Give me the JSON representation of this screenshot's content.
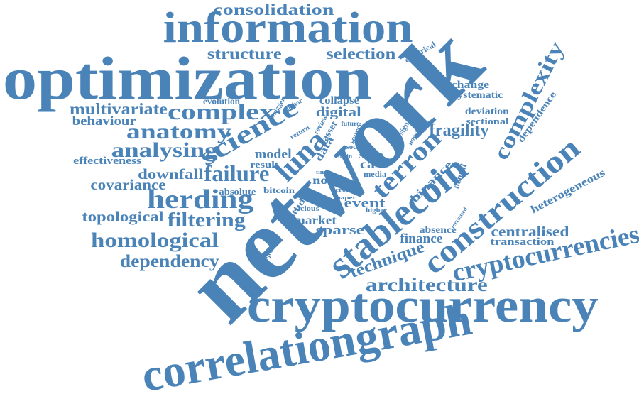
{
  "cloud": {
    "color": "#4a83b8",
    "words": [
      {
        "id": "consolidation",
        "text": "consolidation"
      },
      {
        "id": "information",
        "text": "information"
      },
      {
        "id": "optimization",
        "text": "optimization"
      },
      {
        "id": "structure",
        "text": "structure"
      },
      {
        "id": "selection",
        "text": "selection"
      },
      {
        "id": "empirical",
        "text": "empirical"
      },
      {
        "id": "network",
        "text": "network"
      },
      {
        "id": "evolution",
        "text": "evolution"
      },
      {
        "id": "collapse",
        "text": "collapse"
      },
      {
        "id": "exchange",
        "text": "exchange"
      },
      {
        "id": "systematic",
        "text": "systematic"
      },
      {
        "id": "complexity",
        "text": "complexity"
      },
      {
        "id": "multivariate",
        "text": "multivariate"
      },
      {
        "id": "complex",
        "text": "complex"
      },
      {
        "id": "trigger",
        "text": "trigger"
      },
      {
        "id": "anchor",
        "text": "anchor"
      },
      {
        "id": "digital",
        "text": "digital"
      },
      {
        "id": "dependence",
        "text": "dependence"
      },
      {
        "id": "deviation",
        "text": "deviation"
      },
      {
        "id": "sectional",
        "text": "sectional"
      },
      {
        "id": "behaviour",
        "text": "behaviour"
      },
      {
        "id": "science",
        "text": "science"
      },
      {
        "id": "anatomy",
        "text": "anatomy"
      },
      {
        "id": "fragility",
        "text": "fragility"
      },
      {
        "id": "construction",
        "text": "construction"
      },
      {
        "id": "return",
        "text": "return"
      },
      {
        "id": "review",
        "text": "review"
      },
      {
        "id": "asset",
        "text": "asset"
      },
      {
        "id": "future",
        "text": "future"
      },
      {
        "id": "design",
        "text": "design"
      },
      {
        "id": "novel",
        "text": "novel"
      },
      {
        "id": "analysing",
        "text": "analysing"
      },
      {
        "id": "luna",
        "text": "luna"
      },
      {
        "id": "data",
        "text": "data"
      },
      {
        "id": "source",
        "text": "source"
      },
      {
        "id": "social",
        "text": "social"
      },
      {
        "id": "terron",
        "text": "terron"
      },
      {
        "id": "effectiveness",
        "text": "effectiveness"
      },
      {
        "id": "model",
        "text": "model"
      },
      {
        "id": "main",
        "text": "main"
      },
      {
        "id": "state",
        "text": "state"
      },
      {
        "id": "case",
        "text": "case"
      },
      {
        "id": "stablecoin",
        "text": "stablecoin"
      },
      {
        "id": "result",
        "text": "result"
      },
      {
        "id": "media",
        "text": "media"
      },
      {
        "id": "binance",
        "text": "binance"
      },
      {
        "id": "neural",
        "text": "neural"
      },
      {
        "id": "heterogeneous",
        "text": "heterogeneous"
      },
      {
        "id": "covariance",
        "text": "covariance"
      },
      {
        "id": "downfall",
        "text": "downfall"
      },
      {
        "id": "failure",
        "text": "failure"
      },
      {
        "id": "time",
        "text": "time"
      },
      {
        "id": "noise",
        "text": "noise"
      },
      {
        "id": "herding",
        "text": "herding"
      },
      {
        "id": "absolute",
        "text": "absolute"
      },
      {
        "id": "bitcoin",
        "text": "bitcoin"
      },
      {
        "id": "cross",
        "text": "cross"
      },
      {
        "id": "paper",
        "text": "paper"
      },
      {
        "id": "event",
        "text": "event"
      },
      {
        "id": "higher",
        "text": "higher"
      },
      {
        "id": "topological",
        "text": "topological"
      },
      {
        "id": "filtering",
        "text": "filtering"
      },
      {
        "id": "study",
        "text": "study"
      },
      {
        "id": "vicious",
        "text": "vicious"
      },
      {
        "id": "market",
        "text": "market"
      },
      {
        "id": "terraused",
        "text": "terraused"
      },
      {
        "id": "absence",
        "text": "absence"
      },
      {
        "id": "sparse",
        "text": "sparse"
      },
      {
        "id": "centralised",
        "text": "centralised"
      },
      {
        "id": "homological",
        "text": "homological"
      },
      {
        "id": "finance",
        "text": "finance"
      },
      {
        "id": "transaction",
        "text": "transaction"
      },
      {
        "id": "cryptocurrencies",
        "text": "cryptocurrencies"
      },
      {
        "id": "project",
        "text": "project"
      },
      {
        "id": "technique",
        "text": "technique"
      },
      {
        "id": "dependency",
        "text": "dependency"
      },
      {
        "id": "architecture",
        "text": "architecture"
      },
      {
        "id": "cryptocurrency",
        "text": "cryptocurrency"
      },
      {
        "id": "correlationgraph",
        "text": "correlationgraph"
      }
    ]
  }
}
